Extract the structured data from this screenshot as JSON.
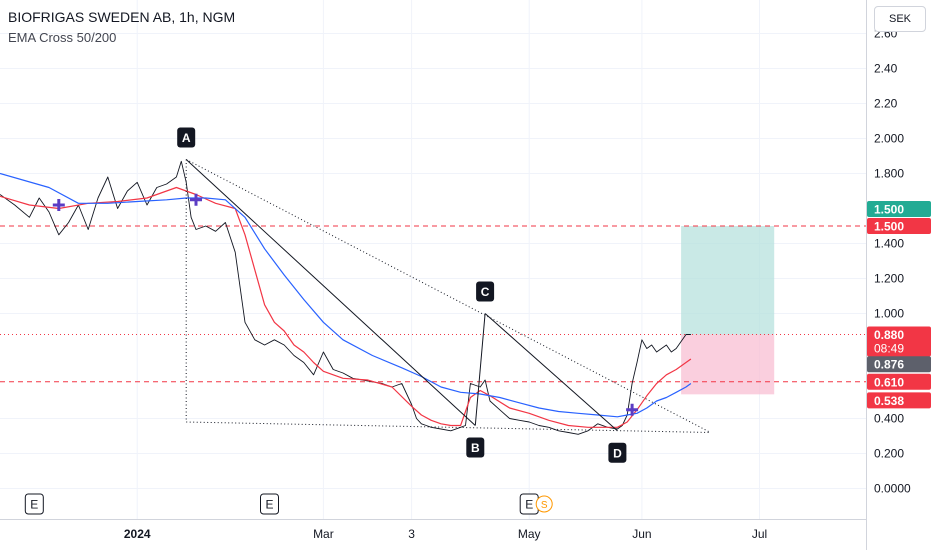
{
  "header": {
    "title": "BIOFRIGAS SWEDEN AB, 1h, NGM",
    "indicator": "EMA Cross 50/200"
  },
  "currency_button": "SEK",
  "colors": {
    "price": "#131722",
    "ema_fast": "#f23645",
    "ema_slow": "#2962ff",
    "marker": "#5b3cc4",
    "target_zone": "#b2dfdb",
    "stop_zone": "#f8bbd0",
    "green_label": "#22ab94",
    "red_label": "#f23645",
    "gray_label": "#5d606b"
  },
  "chart_data": {
    "type": "line",
    "title": "BIOFRIGAS SWEDEN AB, 1h, NGM",
    "y_axis": {
      "ticks": [
        {
          "value": 2.6,
          "label": "2.60"
        },
        {
          "value": 2.4,
          "label": "2.40"
        },
        {
          "value": 2.2,
          "label": "2.20"
        },
        {
          "value": 2.0,
          "label": "2.000"
        },
        {
          "value": 1.8,
          "label": "1.800"
        },
        {
          "value": 1.4,
          "label": "1.400"
        },
        {
          "value": 1.2,
          "label": "1.200"
        },
        {
          "value": 1.0,
          "label": "1.000"
        },
        {
          "value": 0.4,
          "label": "0.400"
        },
        {
          "value": 0.2,
          "label": "0.200"
        },
        {
          "value": 0.0,
          "label": "0.0000"
        }
      ],
      "range": [
        -0.1,
        2.7
      ]
    },
    "x_axis": {
      "labels": [
        {
          "t": 28,
          "label": "2024",
          "bold": true
        },
        {
          "t": 66,
          "label": "Mar",
          "bold": false
        },
        {
          "t": 84,
          "label": "3",
          "bold": false
        },
        {
          "t": 108,
          "label": "May",
          "bold": false
        },
        {
          "t": 131,
          "label": "Jun",
          "bold": false
        },
        {
          "t": 155,
          "label": "Jul",
          "bold": false
        }
      ],
      "range": [
        0,
        200
      ]
    },
    "series": [
      {
        "name": "price",
        "t": [
          0,
          3,
          6,
          8,
          10,
          12,
          14,
          16,
          18,
          20,
          22,
          24,
          26,
          28,
          30,
          32,
          34,
          36,
          37,
          38,
          39,
          40,
          42,
          44,
          46,
          48,
          50,
          52,
          54,
          56,
          58,
          60,
          62,
          64,
          66,
          68,
          70,
          72,
          74,
          76,
          78,
          80,
          82,
          84,
          85,
          86,
          87,
          88,
          90,
          92,
          94,
          95,
          96,
          98,
          99,
          100,
          102,
          104,
          106,
          108,
          110,
          112,
          114,
          116,
          118,
          120,
          122,
          124,
          126,
          127,
          128,
          129,
          130,
          131,
          132,
          133,
          134,
          136,
          137,
          138,
          139,
          140,
          141
        ],
        "values": [
          1.68,
          1.62,
          1.55,
          1.66,
          1.58,
          1.45,
          1.52,
          1.62,
          1.48,
          1.66,
          1.78,
          1.6,
          1.7,
          1.75,
          1.62,
          1.72,
          1.74,
          1.78,
          1.87,
          1.75,
          1.55,
          1.48,
          1.5,
          1.47,
          1.52,
          1.35,
          0.95,
          0.85,
          0.82,
          0.85,
          0.82,
          0.76,
          0.72,
          0.65,
          0.78,
          0.68,
          0.66,
          0.63,
          0.62,
          0.61,
          0.6,
          0.58,
          0.6,
          0.48,
          0.4,
          0.37,
          0.36,
          0.35,
          0.34,
          0.33,
          0.35,
          0.36,
          0.6,
          0.58,
          0.62,
          0.5,
          0.45,
          0.4,
          0.39,
          0.38,
          0.36,
          0.35,
          0.33,
          0.32,
          0.31,
          0.33,
          0.37,
          0.35,
          0.34,
          0.36,
          0.42,
          0.6,
          0.72,
          0.85,
          0.8,
          0.82,
          0.78,
          0.82,
          0.78,
          0.8,
          0.84,
          0.88,
          0.88
        ]
      },
      {
        "name": "EMA 50",
        "t": [
          0,
          6,
          12,
          18,
          24,
          30,
          36,
          40,
          44,
          48,
          50,
          52,
          54,
          56,
          58,
          60,
          62,
          64,
          66,
          70,
          75,
          80,
          84,
          86,
          88,
          90,
          92,
          94,
          96,
          98,
          100,
          104,
          108,
          112,
          116,
          120,
          124,
          126,
          128,
          130,
          132,
          134,
          136,
          138,
          140,
          141
        ],
        "values": [
          1.67,
          1.62,
          1.6,
          1.63,
          1.64,
          1.66,
          1.72,
          1.68,
          1.63,
          1.6,
          1.45,
          1.25,
          1.05,
          0.95,
          0.9,
          0.82,
          0.78,
          0.72,
          0.67,
          0.63,
          0.62,
          0.58,
          0.47,
          0.42,
          0.39,
          0.37,
          0.36,
          0.36,
          0.52,
          0.56,
          0.53,
          0.46,
          0.43,
          0.39,
          0.36,
          0.35,
          0.35,
          0.35,
          0.38,
          0.45,
          0.53,
          0.6,
          0.65,
          0.68,
          0.72,
          0.74
        ]
      },
      {
        "name": "EMA 200",
        "t": [
          0,
          10,
          16,
          22,
          28,
          34,
          38,
          42,
          46,
          50,
          54,
          58,
          62,
          66,
          70,
          76,
          82,
          86,
          90,
          94,
          98,
          102,
          106,
          110,
          114,
          118,
          122,
          126,
          128,
          130,
          132,
          134,
          136,
          138,
          140,
          141
        ],
        "values": [
          1.8,
          1.72,
          1.63,
          1.63,
          1.64,
          1.65,
          1.66,
          1.66,
          1.65,
          1.55,
          1.37,
          1.22,
          1.08,
          0.95,
          0.85,
          0.76,
          0.69,
          0.64,
          0.58,
          0.55,
          0.54,
          0.52,
          0.49,
          0.46,
          0.44,
          0.43,
          0.42,
          0.41,
          0.42,
          0.43,
          0.46,
          0.5,
          0.52,
          0.55,
          0.58,
          0.6
        ]
      }
    ],
    "cross_markers": [
      {
        "t": 12,
        "value": 1.62
      },
      {
        "t": 40,
        "value": 1.65
      },
      {
        "t": 129,
        "value": 0.45
      }
    ],
    "pattern": {
      "points": [
        {
          "label": "A",
          "t": 38,
          "value": 1.88,
          "pos": "above"
        },
        {
          "label": "B",
          "t": 97,
          "value": 0.36,
          "pos": "below"
        },
        {
          "label": "C",
          "t": 99,
          "value": 1.0,
          "pos": "above"
        },
        {
          "label": "D",
          "t": 126,
          "value": 0.33,
          "pos": "below"
        }
      ],
      "upper_trendline": [
        {
          "t": 38,
          "value": 1.88
        },
        {
          "t": 145,
          "value": 0.32
        }
      ],
      "lower_trendline": [
        {
          "t": 38,
          "value": 0.38
        },
        {
          "t": 145,
          "value": 0.32
        }
      ],
      "vertical_line": [
        {
          "t": 38,
          "value": 1.88
        },
        {
          "t": 38,
          "value": 0.38
        }
      ]
    },
    "position": {
      "t_start": 139,
      "t_end": 158,
      "entry": 0.88,
      "target": 1.5,
      "stop": 0.538
    },
    "horizontal_lines": [
      {
        "value": 1.5,
        "style": "dashed",
        "color": "#f23645"
      },
      {
        "value": 0.88,
        "style": "dotted",
        "color": "#f23645"
      },
      {
        "value": 0.61,
        "style": "dashed",
        "color": "#f23645"
      }
    ],
    "price_labels": [
      {
        "value": 1.5,
        "text": "1.500",
        "color": "#22ab94",
        "row": 0
      },
      {
        "value": 1.5,
        "text": "1.500",
        "color": "#f23645",
        "row": 1
      },
      {
        "value": 0.88,
        "text": "0.880",
        "color": "#f23645",
        "row": 0,
        "sub": "08:49"
      },
      {
        "value": 0.876,
        "text": "0.876",
        "color": "#5d606b",
        "row": 2
      },
      {
        "value": 0.61,
        "text": "0.610",
        "color": "#f23645",
        "row": 0
      },
      {
        "value": 0.538,
        "text": "0.538",
        "color": "#f23645",
        "row": 0
      }
    ],
    "event_markers": [
      {
        "t": 7,
        "label": "E"
      },
      {
        "t": 55,
        "label": "E"
      },
      {
        "t": 108,
        "label": "E",
        "extra": "S"
      }
    ]
  }
}
